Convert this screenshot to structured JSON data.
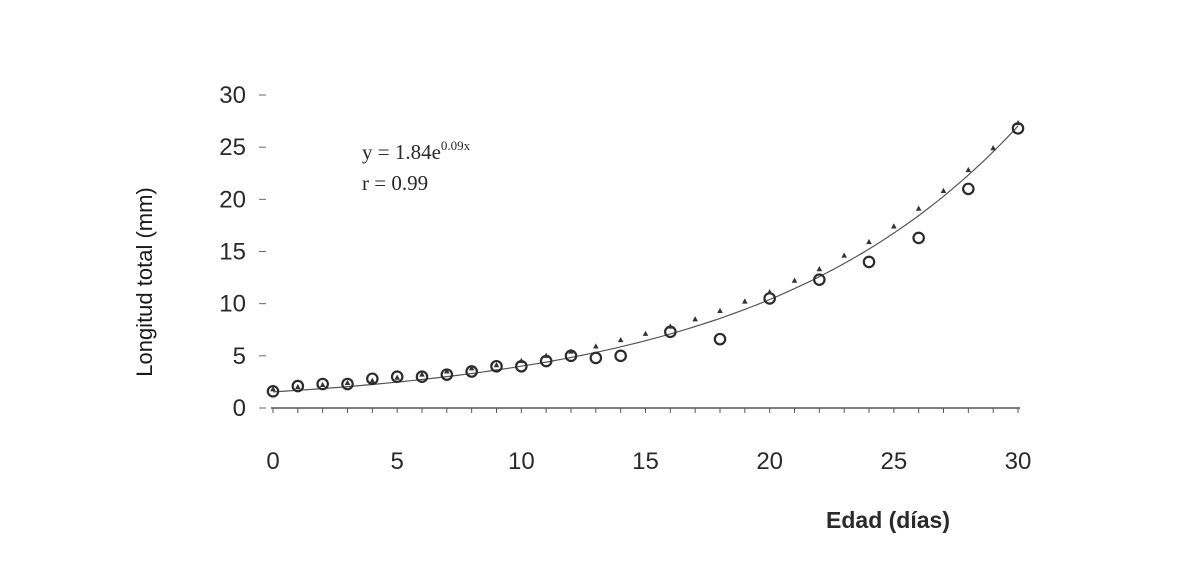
{
  "chart_data": {
    "type": "scatter",
    "xlabel": "Edad (días)",
    "ylabel": "Longitud total (mm)",
    "xlim": [
      0,
      30
    ],
    "ylim": [
      0,
      30
    ],
    "x_ticks": [
      "0",
      "5",
      "10",
      "15",
      "20",
      "25",
      "30"
    ],
    "y_ticks": [
      "0",
      "5",
      "10",
      "15",
      "20",
      "25",
      "30"
    ],
    "grid": false,
    "annotations": {
      "equation_base": "y = 1.84e",
      "equation_exponent": "0.09x",
      "correlation": "r = 0.99"
    },
    "series": [
      {
        "marker": "open-circle",
        "x": [
          0,
          1,
          2,
          3,
          4,
          5,
          6,
          7,
          8,
          9,
          10,
          11,
          12,
          13,
          14,
          16,
          18,
          20,
          22,
          24,
          26,
          28,
          30
        ],
        "y": [
          1.6,
          2.1,
          2.3,
          2.3,
          2.8,
          3.0,
          3.0,
          3.2,
          3.5,
          4.0,
          4.0,
          4.5,
          5.0,
          4.8,
          5.0,
          7.3,
          6.6,
          10.5,
          12.3,
          14.0,
          16.3,
          21.0,
          26.8
        ]
      },
      {
        "marker": "small-triangle",
        "fit": "y = 1.84e^(0.09x)",
        "x": [
          0,
          1,
          2,
          3,
          4,
          5,
          6,
          7,
          8,
          9,
          10,
          11,
          12,
          13,
          14,
          15,
          16,
          17,
          18,
          19,
          20,
          21,
          22,
          23,
          24,
          25,
          26,
          27,
          28,
          29,
          30
        ],
        "y": [
          1.8,
          2.0,
          2.2,
          2.4,
          2.6,
          2.9,
          3.2,
          3.5,
          3.8,
          4.1,
          4.5,
          5.0,
          5.4,
          5.9,
          6.5,
          7.1,
          7.8,
          8.5,
          9.3,
          10.2,
          11.1,
          12.2,
          13.3,
          14.6,
          15.9,
          17.4,
          19.1,
          20.8,
          22.8,
          24.9,
          27.3
        ]
      }
    ]
  }
}
